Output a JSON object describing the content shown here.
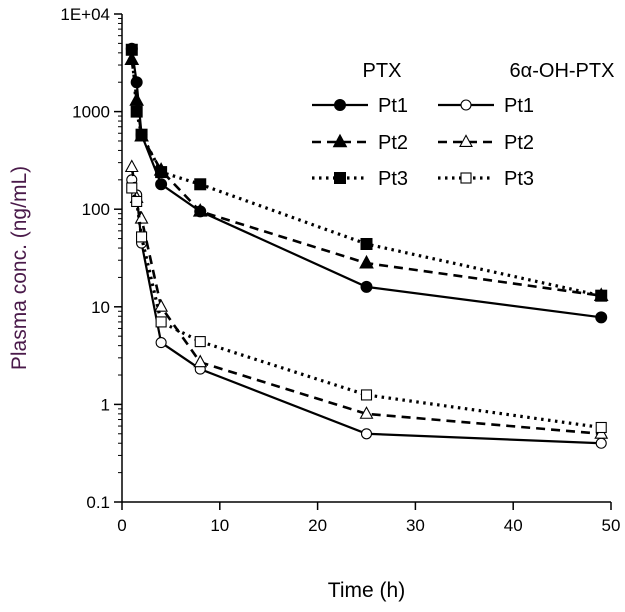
{
  "chart_data": {
    "type": "line",
    "title": "",
    "xlabel": "Time (h)",
    "ylabel": "Plasma conc. (ng/mL)",
    "y_scale": "log",
    "xlim": [
      0,
      50
    ],
    "ylim": [
      0.1,
      10000
    ],
    "x_ticks": [
      0,
      10,
      20,
      30,
      40,
      50
    ],
    "x_tick_labels": [
      "0",
      "10",
      "20",
      "30",
      "40",
      "50"
    ],
    "y_ticks": [
      0.1,
      1,
      10,
      100,
      1000,
      10000
    ],
    "y_tick_labels": [
      "0.1",
      "1",
      "10",
      "100",
      "1000",
      "1E+04"
    ],
    "grid": false,
    "legend": {
      "placement": "top-right",
      "groups": [
        {
          "title": "PTX",
          "entries": [
            "Pt1",
            "Pt2",
            "Pt3"
          ]
        },
        {
          "title": "6α-OH-PTX",
          "entries": [
            "Pt1",
            "Pt2",
            "Pt3"
          ]
        }
      ]
    },
    "series": [
      {
        "group": "PTX",
        "name": "Pt1",
        "marker": "circle",
        "filled": true,
        "dash": "solid",
        "line_width": 2.2,
        "x": [
          1,
          1.5,
          2,
          4,
          8,
          25,
          49
        ],
        "y": [
          4400,
          2000,
          580,
          180,
          95,
          16,
          7.8
        ]
      },
      {
        "group": "PTX",
        "name": "Pt2",
        "marker": "triangle",
        "filled": true,
        "dash": "dashed",
        "line_width": 2.6,
        "x": [
          1,
          1.5,
          2,
          4,
          8,
          25,
          49
        ],
        "y": [
          3400,
          1300,
          560,
          250,
          95,
          28,
          13
        ]
      },
      {
        "group": "PTX",
        "name": "Pt3",
        "marker": "square",
        "filled": true,
        "dash": "dotted",
        "line_width": 3.2,
        "x": [
          1,
          1.5,
          2,
          4,
          8,
          25,
          49
        ],
        "y": [
          4300,
          1000,
          580,
          240,
          180,
          44,
          13
        ]
      },
      {
        "group": "6α-OH-PTX",
        "name": "Pt1",
        "marker": "circle",
        "filled": false,
        "dash": "solid",
        "line_width": 2.2,
        "x": [
          1,
          1.5,
          2,
          4,
          8,
          25,
          49
        ],
        "y": [
          200,
          140,
          45,
          4.3,
          2.3,
          0.5,
          0.4
        ]
      },
      {
        "group": "6α-OH-PTX",
        "name": "Pt2",
        "marker": "triangle",
        "filled": false,
        "dash": "dashed",
        "line_width": 2.6,
        "x": [
          1,
          1.5,
          2,
          4,
          8,
          25,
          49
        ],
        "y": [
          270,
          130,
          80,
          10,
          2.7,
          0.8,
          0.5
        ]
      },
      {
        "group": "6α-OH-PTX",
        "name": "Pt3",
        "marker": "square",
        "filled": false,
        "dash": "dotted",
        "line_width": 3.2,
        "x": [
          1,
          1.5,
          2,
          4,
          8,
          25,
          49
        ],
        "y": [
          165,
          120,
          52,
          7,
          4.4,
          1.25,
          0.58
        ]
      }
    ]
  }
}
